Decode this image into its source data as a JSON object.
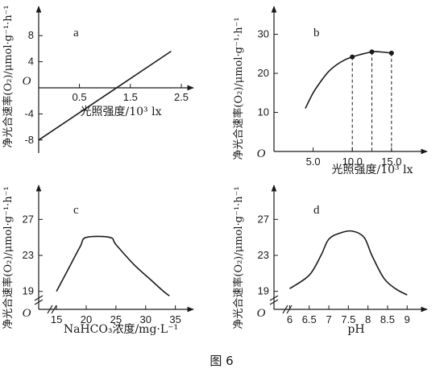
{
  "figure": {
    "caption": "图 6"
  },
  "chart_data": [
    {
      "type": "line",
      "panel_label": "a",
      "origin_label": "O",
      "ylabel": "净光合速率(O₂)/μmol·g⁻¹·h⁻¹",
      "xlabel": "光照强度/10³ lx",
      "xlim": [
        -0.3,
        2.5
      ],
      "ylim": [
        -10,
        10
      ],
      "x_ticks": [
        "0.5",
        "1.5",
        "2.5"
      ],
      "x_tick_values": [
        0.5,
        1.5,
        2.5
      ],
      "y_ticks": [
        "8",
        "4",
        "-4",
        "-8"
      ],
      "y_tick_values": [
        8,
        4,
        -4,
        -8
      ],
      "series": [
        {
          "x": [
            -0.3,
            2.3
          ],
          "y": [
            -8,
            5.6
          ]
        }
      ]
    },
    {
      "type": "line",
      "panel_label": "b",
      "origin_label": "O",
      "ylabel": "净光合速率(O₂)/μmol·g⁻¹·h⁻¹",
      "xlabel": "光照强度/10³ lx",
      "xlim": [
        0,
        18
      ],
      "ylim": [
        0,
        33
      ],
      "x_ticks": [
        "5.0",
        "10.0",
        "15.0"
      ],
      "x_tick_values": [
        5,
        10,
        15
      ],
      "y_ticks": [
        "10",
        "20",
        "30"
      ],
      "y_tick_values": [
        10,
        20,
        30
      ],
      "series": [
        {
          "x": [
            4,
            5,
            6,
            7,
            8,
            9,
            10,
            11,
            12.5,
            13.5,
            15
          ],
          "y": [
            11,
            15,
            18,
            20.5,
            22.2,
            23.4,
            24.2,
            24.8,
            25.5,
            25.5,
            25.2
          ]
        }
      ],
      "markers": [
        {
          "x": 10,
          "y": 24.2
        },
        {
          "x": 12.5,
          "y": 25.5
        },
        {
          "x": 15,
          "y": 25.2
        }
      ]
    },
    {
      "type": "line",
      "panel_label": "c",
      "origin_label": "O",
      "ylabel": "净光合速率(O₂)/μmol·g⁻¹·h⁻¹",
      "xlabel": "NaHCO₃浓度/mg·L⁻¹",
      "xlim": [
        12,
        36
      ],
      "ylim": [
        17,
        29
      ],
      "x_ticks": [
        "15",
        "20",
        "25",
        "30",
        "35"
      ],
      "x_tick_values": [
        15,
        20,
        25,
        30,
        35
      ],
      "y_ticks": [
        "27",
        "23",
        "19"
      ],
      "y_tick_values": [
        27,
        23,
        19
      ],
      "series": [
        {
          "x": [
            15,
            17,
            19,
            20,
            24,
            25,
            28,
            31,
            33,
            34
          ],
          "y": [
            19,
            21.5,
            24,
            25,
            25,
            24.2,
            22,
            20.2,
            19,
            18.5
          ]
        }
      ]
    },
    {
      "type": "line",
      "panel_label": "d",
      "origin_label": "O",
      "ylabel": "净光合速率(O₂)/μmol·g⁻¹·h⁻¹",
      "xlabel": "pH",
      "xlim": [
        5.6,
        9.2
      ],
      "ylim": [
        17,
        29
      ],
      "x_ticks": [
        "6",
        "6.5",
        "7",
        "7.5",
        "8",
        "8.5",
        "9"
      ],
      "x_tick_values": [
        6,
        6.5,
        7,
        7.5,
        8,
        8.5,
        9
      ],
      "y_ticks": [
        "27",
        "23",
        "19"
      ],
      "y_tick_values": [
        27,
        23,
        19
      ],
      "series": [
        {
          "x": [
            6,
            6.5,
            6.8,
            7,
            7.3,
            7.6,
            7.9,
            8.1,
            8.4,
            8.7,
            9
          ],
          "y": [
            19.3,
            20.8,
            23,
            24.8,
            25.5,
            25.7,
            25,
            23,
            20.5,
            19.3,
            18.6
          ]
        }
      ]
    }
  ]
}
